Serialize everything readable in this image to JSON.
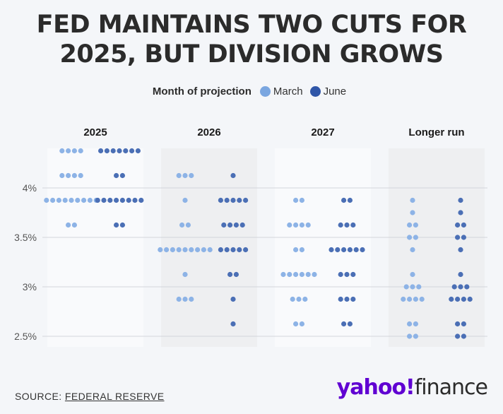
{
  "title_lines": [
    "FED MAINTAINS TWO CUTS FOR",
    "2025, BUT DIVISION GROWS"
  ],
  "legend": {
    "title": "Month of projection",
    "items": [
      {
        "label": "March",
        "color": "#7aa6e0"
      },
      {
        "label": "June",
        "color": "#4a6fb2"
      }
    ]
  },
  "source_prefix": "SOURCE: ",
  "source_link": "FEDERAL RESERVE",
  "logo": {
    "brand": "yahoo!",
    "product": "finance"
  },
  "chart_data": {
    "type": "scatter",
    "subtype": "dot plot",
    "y_ticks": [
      {
        "value": 4.0,
        "label": "4%"
      },
      {
        "value": 3.5,
        "label": "3.5%"
      },
      {
        "value": 3.0,
        "label": "3%"
      },
      {
        "value": 2.5,
        "label": "2.5%"
      }
    ],
    "y_range": [
      2.5,
      4.375
    ],
    "grid": true,
    "legend_position": "top-center",
    "panels": [
      {
        "label": "2025",
        "March": [
          {
            "rate": 4.375,
            "count": 4
          },
          {
            "rate": 4.125,
            "count": 4
          },
          {
            "rate": 3.875,
            "count": 9
          },
          {
            "rate": 3.625,
            "count": 2
          }
        ],
        "June": [
          {
            "rate": 4.375,
            "count": 7
          },
          {
            "rate": 4.125,
            "count": 2
          },
          {
            "rate": 3.875,
            "count": 8
          },
          {
            "rate": 3.625,
            "count": 2
          }
        ]
      },
      {
        "label": "2026",
        "March": [
          {
            "rate": 4.125,
            "count": 3
          },
          {
            "rate": 3.875,
            "count": 1
          },
          {
            "rate": 3.625,
            "count": 2
          },
          {
            "rate": 3.375,
            "count": 9
          },
          {
            "rate": 3.125,
            "count": 1
          },
          {
            "rate": 2.875,
            "count": 3
          }
        ],
        "June": [
          {
            "rate": 4.125,
            "count": 1
          },
          {
            "rate": 3.875,
            "count": 5
          },
          {
            "rate": 3.625,
            "count": 4
          },
          {
            "rate": 3.375,
            "count": 5
          },
          {
            "rate": 3.125,
            "count": 2
          },
          {
            "rate": 2.875,
            "count": 1
          },
          {
            "rate": 2.625,
            "count": 1
          }
        ]
      },
      {
        "label": "2027",
        "March": [
          {
            "rate": 3.875,
            "count": 2
          },
          {
            "rate": 3.625,
            "count": 4
          },
          {
            "rate": 3.375,
            "count": 2
          },
          {
            "rate": 3.125,
            "count": 6
          },
          {
            "rate": 2.875,
            "count": 3
          },
          {
            "rate": 2.625,
            "count": 2
          }
        ],
        "June": [
          {
            "rate": 3.875,
            "count": 2
          },
          {
            "rate": 3.625,
            "count": 3
          },
          {
            "rate": 3.375,
            "count": 6
          },
          {
            "rate": 3.125,
            "count": 3
          },
          {
            "rate": 2.875,
            "count": 3
          },
          {
            "rate": 2.625,
            "count": 2
          }
        ]
      },
      {
        "label": "Longer run",
        "March": [
          {
            "rate": 3.875,
            "count": 1
          },
          {
            "rate": 3.75,
            "count": 1
          },
          {
            "rate": 3.625,
            "count": 2
          },
          {
            "rate": 3.5,
            "count": 2
          },
          {
            "rate": 3.375,
            "count": 1
          },
          {
            "rate": 3.125,
            "count": 1
          },
          {
            "rate": 3.0,
            "count": 3
          },
          {
            "rate": 2.875,
            "count": 4
          },
          {
            "rate": 2.625,
            "count": 2
          },
          {
            "rate": 2.5,
            "count": 2
          }
        ],
        "June": [
          {
            "rate": 3.875,
            "count": 1
          },
          {
            "rate": 3.75,
            "count": 1
          },
          {
            "rate": 3.625,
            "count": 2
          },
          {
            "rate": 3.5,
            "count": 2
          },
          {
            "rate": 3.375,
            "count": 1
          },
          {
            "rate": 3.125,
            "count": 1
          },
          {
            "rate": 3.0,
            "count": 3
          },
          {
            "rate": 2.875,
            "count": 4
          },
          {
            "rate": 2.625,
            "count": 2
          },
          {
            "rate": 2.5,
            "count": 2
          }
        ]
      }
    ]
  }
}
